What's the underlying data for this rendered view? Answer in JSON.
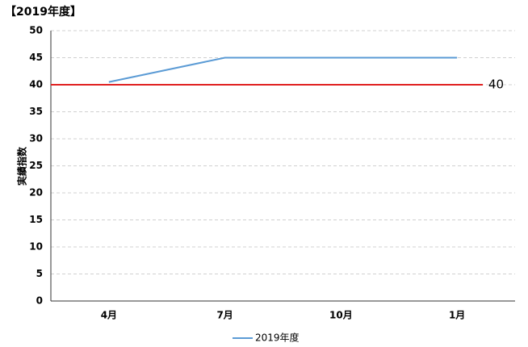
{
  "chart_data": {
    "type": "line",
    "title": "【2019年度】",
    "y_label": "実績指数",
    "categories": [
      "4月",
      "7月",
      "10月",
      "1月"
    ],
    "series": [
      {
        "name": "2019年度",
        "color": "#5b9bd5",
        "values": [
          40.5,
          45,
          45,
          45
        ]
      }
    ],
    "reference_line": {
      "value": 40,
      "color": "#e02020"
    },
    "ylim": [
      0,
      50
    ],
    "yticks": [
      0,
      5,
      10,
      15,
      20,
      25,
      30,
      35,
      40,
      45,
      50
    ],
    "grid": true,
    "legend": "bottom"
  }
}
